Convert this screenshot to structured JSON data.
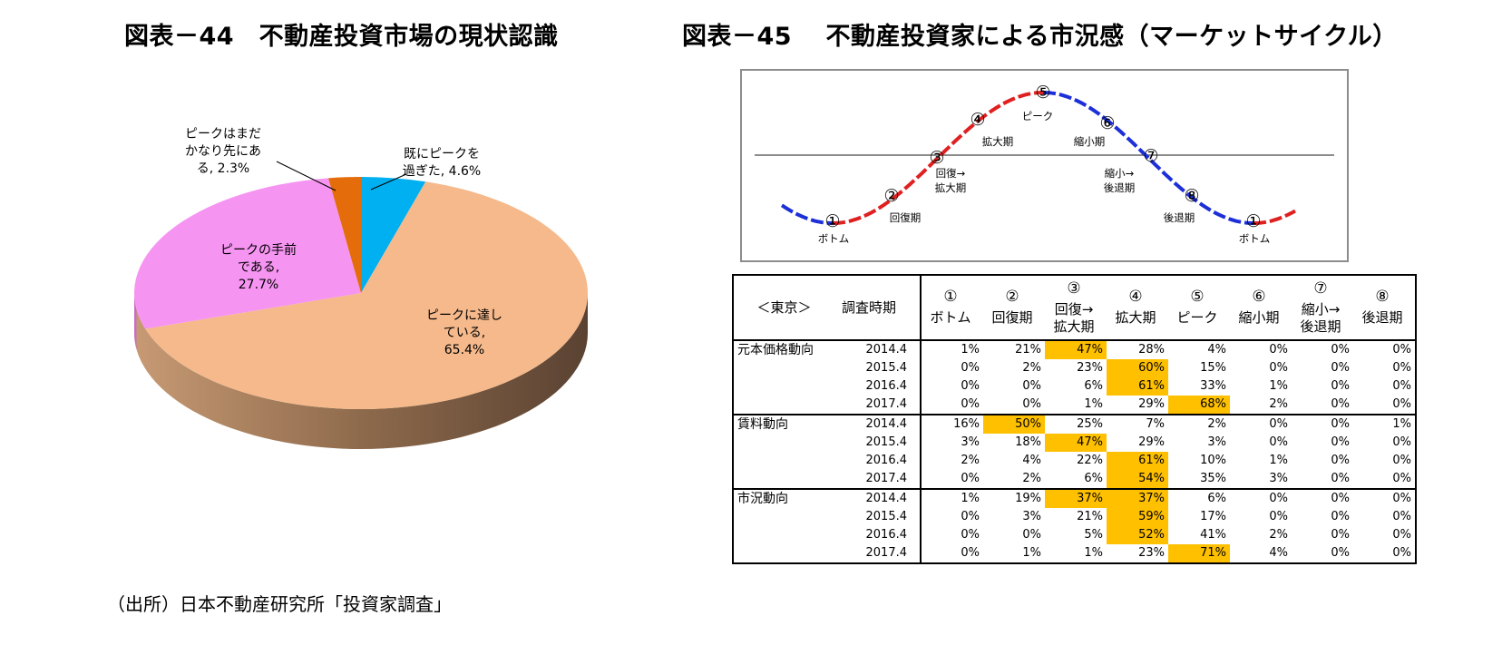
{
  "left_title": "図表－44　不動産投資市場の現状認識",
  "right_title": "図表－45　 不動産投資家による市況感（マーケットサイクル）",
  "source": "（出所）日本不動産研究所「投資家調査」",
  "colors": {
    "slice_reached": "#f5b98b",
    "slice_before": "#f694f2",
    "slice_far": "#e46c0a",
    "slice_past": "#00b0f0",
    "cycle_red": "#e02020",
    "cycle_blue": "#1c2fd8",
    "highlight": "#ffc000"
  },
  "chart_data": [
    {
      "type": "pie",
      "slices": [
        {
          "label_lines": [
            "ピークに達し",
            "ている,",
            "65.4%"
          ],
          "value": 65.4,
          "color": "#f5b98b"
        },
        {
          "label_lines": [
            "ピークの手前",
            "である,",
            "27.7%"
          ],
          "value": 27.7,
          "color": "#f694f2"
        },
        {
          "label_lines": [
            "ピークはまだ",
            "かなり先にあ",
            "る, 2.3%"
          ],
          "value": 2.3,
          "color": "#e46c0a"
        },
        {
          "label_lines": [
            "既にピークを",
            "過ぎた, 4.6%"
          ],
          "value": 4.6,
          "color": "#00b0f0"
        }
      ]
    },
    {
      "type": "diagram",
      "phases": [
        {
          "num": "①",
          "label": "ボトム"
        },
        {
          "num": "②",
          "label": "回復期"
        },
        {
          "num": "③",
          "label": "回復→\n拡大期"
        },
        {
          "num": "④",
          "label": "拡大期"
        },
        {
          "num": "⑤",
          "label": "ピーク"
        },
        {
          "num": "⑥",
          "label": "縮小期"
        },
        {
          "num": "⑦",
          "label": "縮小→\n後退期"
        },
        {
          "num": "⑧",
          "label": "後退期"
        },
        {
          "num": "①",
          "label": "ボトム"
        }
      ]
    },
    {
      "type": "table",
      "corner": "＜東京＞",
      "period_header": "調査時期",
      "columns": [
        {
          "num": "①",
          "label": "ボトム"
        },
        {
          "num": "②",
          "label": "回復期"
        },
        {
          "num": "③",
          "label": "回復→\n拡大期"
        },
        {
          "num": "④",
          "label": "拡大期"
        },
        {
          "num": "⑤",
          "label": "ピーク"
        },
        {
          "num": "⑥",
          "label": "縮小期"
        },
        {
          "num": "⑦",
          "label": "縮小→\n後退期"
        },
        {
          "num": "⑧",
          "label": "後退期"
        }
      ],
      "groups": [
        {
          "name": "元本価格動向",
          "rows": [
            {
              "period": "2014.4",
              "values": [
                "1%",
                "21%",
                "47%",
                "28%",
                "4%",
                "0%",
                "0%",
                "0%"
              ],
              "highlight": 2
            },
            {
              "period": "2015.4",
              "values": [
                "0%",
                "2%",
                "23%",
                "60%",
                "15%",
                "0%",
                "0%",
                "0%"
              ],
              "highlight": 3
            },
            {
              "period": "2016.4",
              "values": [
                "0%",
                "0%",
                "6%",
                "61%",
                "33%",
                "1%",
                "0%",
                "0%"
              ],
              "highlight": 3
            },
            {
              "period": "2017.4",
              "values": [
                "0%",
                "0%",
                "1%",
                "29%",
                "68%",
                "2%",
                "0%",
                "0%"
              ],
              "highlight": 4
            }
          ]
        },
        {
          "name": "賃料動向",
          "rows": [
            {
              "period": "2014.4",
              "values": [
                "16%",
                "50%",
                "25%",
                "7%",
                "2%",
                "0%",
                "0%",
                "1%"
              ],
              "highlight": 1
            },
            {
              "period": "2015.4",
              "values": [
                "3%",
                "18%",
                "47%",
                "29%",
                "3%",
                "0%",
                "0%",
                "0%"
              ],
              "highlight": 2
            },
            {
              "period": "2016.4",
              "values": [
                "2%",
                "4%",
                "22%",
                "61%",
                "10%",
                "1%",
                "0%",
                "0%"
              ],
              "highlight": 3
            },
            {
              "period": "2017.4",
              "values": [
                "0%",
                "2%",
                "6%",
                "54%",
                "35%",
                "3%",
                "0%",
                "0%"
              ],
              "highlight": 3
            }
          ]
        },
        {
          "name": "市況動向",
          "rows": [
            {
              "period": "2014.4",
              "values": [
                "1%",
                "19%",
                "37%",
                "37%",
                "6%",
                "0%",
                "0%",
                "0%"
              ],
              "highlight": [
                2,
                3
              ]
            },
            {
              "period": "2015.4",
              "values": [
                "0%",
                "3%",
                "21%",
                "59%",
                "17%",
                "0%",
                "0%",
                "0%"
              ],
              "highlight": 3
            },
            {
              "period": "2016.4",
              "values": [
                "0%",
                "0%",
                "5%",
                "52%",
                "41%",
                "2%",
                "0%",
                "0%"
              ],
              "highlight": 3
            },
            {
              "period": "2017.4",
              "values": [
                "0%",
                "1%",
                "1%",
                "23%",
                "71%",
                "4%",
                "0%",
                "0%"
              ],
              "highlight": 4
            }
          ]
        }
      ]
    }
  ]
}
